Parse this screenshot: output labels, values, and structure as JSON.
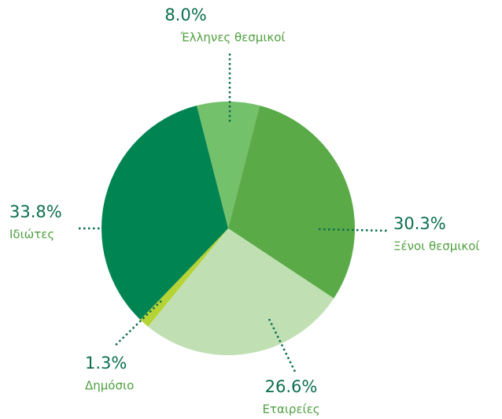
{
  "chart_data": {
    "type": "pie",
    "categories": [
      "Έλληνες θεσμικοί",
      "Ξένοι θεσμικοί",
      "Εταιρείες",
      "Δημόσιο",
      "Ιδιώτες"
    ],
    "values": [
      8.0,
      30.3,
      26.6,
      1.3,
      33.8
    ],
    "value_labels": [
      "8.0%",
      "30.3%",
      "26.6%",
      "1.3%",
      "33.8%"
    ],
    "colors": [
      "#74c16b",
      "#5aab47",
      "#c0e0b3",
      "#b5d334",
      "#008451"
    ]
  }
}
